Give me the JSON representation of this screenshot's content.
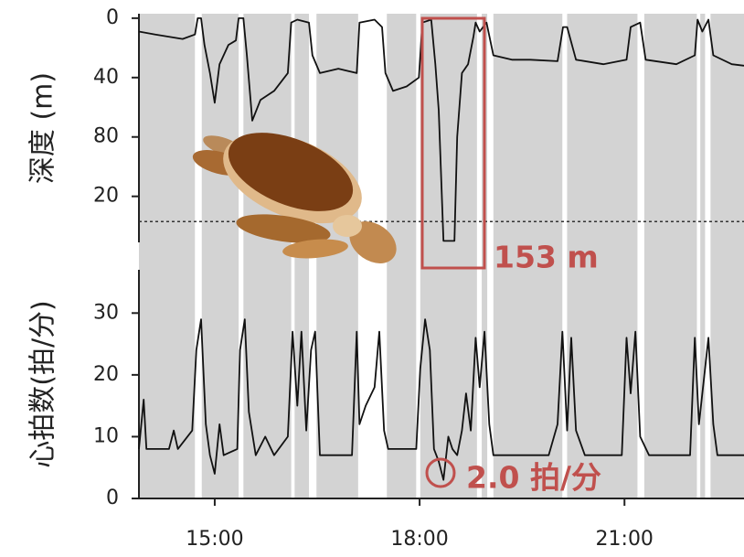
{
  "chart_data": [
    {
      "type": "line",
      "ylabel": "深度 (m)",
      "invert": true,
      "color": "#111111",
      "shade_color": "#d3d3d3",
      "shaded_spans": [
        [
          13.89,
          14.71
        ],
        [
          14.81,
          15.35
        ],
        [
          15.42,
          16.12
        ],
        [
          16.17,
          16.38
        ],
        [
          16.49,
          17.1
        ],
        [
          17.52,
          17.95
        ],
        [
          18.01,
          18.84
        ],
        [
          18.91,
          18.99
        ],
        [
          19.08,
          20.09
        ],
        [
          20.16,
          21.19
        ],
        [
          21.29,
          22.06
        ],
        [
          22.11,
          22.18
        ],
        [
          22.26,
          22.75
        ]
      ],
      "x": [
        13.89,
        14.13,
        14.53,
        14.71,
        14.75,
        14.8,
        14.85,
        14.93,
        15.0,
        15.07,
        15.2,
        15.31,
        15.35,
        15.42,
        15.47,
        15.55,
        15.67,
        15.87,
        16.07,
        16.12,
        16.21,
        16.38,
        16.43,
        16.54,
        16.81,
        17.08,
        17.12,
        17.34,
        17.45,
        17.5,
        17.61,
        17.81,
        17.99,
        18.04,
        18.17,
        18.23,
        18.28,
        18.35,
        18.51,
        18.55,
        18.62,
        18.71,
        18.79,
        18.82,
        18.88,
        18.98,
        19.08,
        19.35,
        19.62,
        20.02,
        20.1,
        20.16,
        20.29,
        20.69,
        21.03,
        21.09,
        21.23,
        21.31,
        21.76,
        22.03,
        22.07,
        22.14,
        22.23,
        22.3,
        22.57,
        22.75
      ],
      "values": [
        9,
        11,
        14,
        11,
        0,
        0,
        18,
        37,
        57,
        31,
        18,
        15,
        0,
        0,
        25,
        69,
        55,
        49,
        37,
        3,
        1,
        3,
        25,
        37,
        34,
        37,
        3,
        1,
        6,
        37,
        49,
        46,
        40,
        3,
        1,
        31,
        62,
        150,
        150,
        80,
        37,
        31,
        12,
        3,
        9,
        3,
        25,
        28,
        28,
        29,
        6,
        6,
        28,
        31,
        28,
        6,
        3,
        28,
        31,
        25,
        1,
        9,
        1,
        25,
        31,
        32
      ],
      "xlim": [
        13.89,
        22.75
      ],
      "ylim": [
        -3,
        151
      ],
      "yticks": [
        0,
        40,
        80,
        {
          "value": 120,
          "label": "20"
        }
      ],
      "ref_line": 137,
      "annotation": "153 m"
    },
    {
      "type": "line",
      "ylabel": "心拍数(拍/分)",
      "color": "#111111",
      "x": [
        13.89,
        13.96,
        14.0,
        14.33,
        14.4,
        14.46,
        14.67,
        14.73,
        14.8,
        14.87,
        14.93,
        15.0,
        15.07,
        15.13,
        15.33,
        15.37,
        15.44,
        15.5,
        15.6,
        15.74,
        15.87,
        16.07,
        16.14,
        16.21,
        16.27,
        16.34,
        16.41,
        16.47,
        16.54,
        17.01,
        17.08,
        17.12,
        17.21,
        17.34,
        17.41,
        17.48,
        17.54,
        17.95,
        18.01,
        18.08,
        18.15,
        18.21,
        18.28,
        18.35,
        18.42,
        18.48,
        18.55,
        18.62,
        18.68,
        18.75,
        18.82,
        18.88,
        18.95,
        19.02,
        19.08,
        19.89,
        20.02,
        20.09,
        20.16,
        20.22,
        20.29,
        20.42,
        20.96,
        21.03,
        21.09,
        21.16,
        21.23,
        21.36,
        21.96,
        22.03,
        22.09,
        22.23,
        22.3,
        22.36,
        22.75
      ],
      "values": [
        8,
        16,
        8,
        8,
        11,
        8,
        11,
        24,
        29,
        12,
        7,
        4,
        12,
        7,
        8,
        24,
        29,
        14,
        7,
        10,
        7,
        10,
        27,
        15,
        27,
        11,
        24,
        27,
        7,
        7,
        27,
        12,
        15,
        18,
        27,
        11,
        8,
        8,
        21,
        29,
        24,
        8,
        6,
        3,
        10,
        8,
        7,
        11,
        17,
        11,
        26,
        18,
        27,
        12,
        7,
        7,
        12,
        27,
        11,
        26,
        11,
        7,
        7,
        26,
        17,
        27,
        10,
        7,
        7,
        26,
        12,
        26,
        12,
        7,
        7
      ],
      "xlim": [
        13.89,
        22.75
      ],
      "ylim": [
        0,
        37
      ],
      "yticks": [
        0,
        10,
        20,
        30
      ],
      "xticks": [
        {
          "value": 15,
          "label": "15:00"
        },
        {
          "value": 18,
          "label": "18:00"
        },
        {
          "value": 21,
          "label": "21:00"
        }
      ],
      "annotation": "2.0 拍/分"
    }
  ]
}
